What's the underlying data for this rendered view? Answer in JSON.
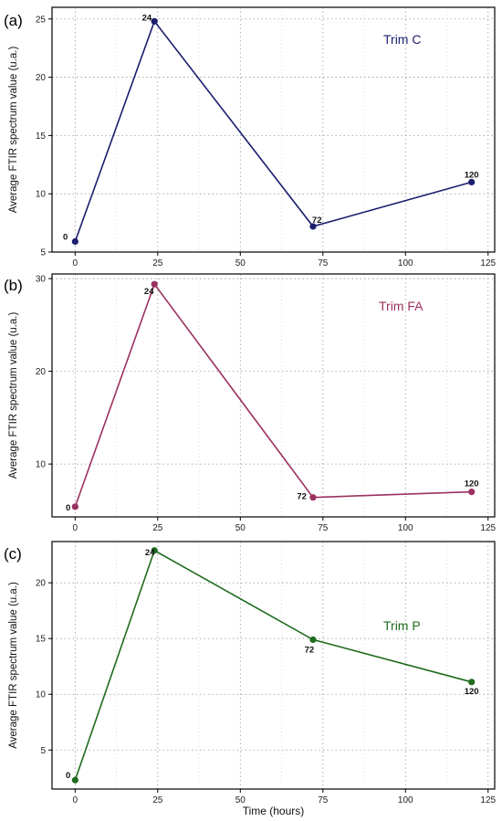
{
  "chart_data": [
    {
      "type": "line",
      "panel_label": "(a)",
      "series_name": "Trim C",
      "color": "#1b1f6e",
      "x": [
        0,
        24,
        72,
        120
      ],
      "y": [
        5.9,
        24.8,
        7.2,
        11.0
      ],
      "point_labels": [
        "0",
        "24",
        "72",
        "120"
      ],
      "xlim": [
        -7,
        127
      ],
      "ylim": [
        5,
        26
      ],
      "xticks": [
        0,
        25,
        50,
        75,
        100,
        125
      ],
      "yticks": [
        5,
        10,
        15,
        20,
        25
      ],
      "ylabel": "Average FTIR spectrum value (u.a.)",
      "grid": true
    },
    {
      "type": "line",
      "panel_label": "(b)",
      "series_name": "Trim FA",
      "color": "#9b3060",
      "x": [
        0,
        24,
        72,
        120
      ],
      "y": [
        5.4,
        29.4,
        6.4,
        7.0
      ],
      "point_labels": [
        "0",
        "24",
        "72",
        "120"
      ],
      "xlim": [
        -7,
        127
      ],
      "ylim": [
        4.3,
        30.5
      ],
      "xticks": [
        0,
        25,
        50,
        75,
        100,
        125
      ],
      "yticks": [
        10,
        20,
        30
      ],
      "ylabel": "Average FTIR spectrum value (u.a.)",
      "grid": true
    },
    {
      "type": "line",
      "panel_label": "(c)",
      "series_name": "Trim P",
      "color": "#1e6b1e",
      "x": [
        0,
        24,
        72,
        120
      ],
      "y": [
        2.3,
        22.9,
        14.9,
        11.1
      ],
      "point_labels": [
        "0",
        "24",
        "72",
        "120"
      ],
      "xlim": [
        -7,
        127
      ],
      "ylim": [
        1.5,
        23.7
      ],
      "xticks": [
        0,
        25,
        50,
        75,
        100,
        125
      ],
      "yticks": [
        5,
        10,
        15,
        20
      ],
      "ylabel": "Average FTIR spectrum value (u.a.)",
      "xlabel": "Time (hours)",
      "grid": true
    }
  ]
}
